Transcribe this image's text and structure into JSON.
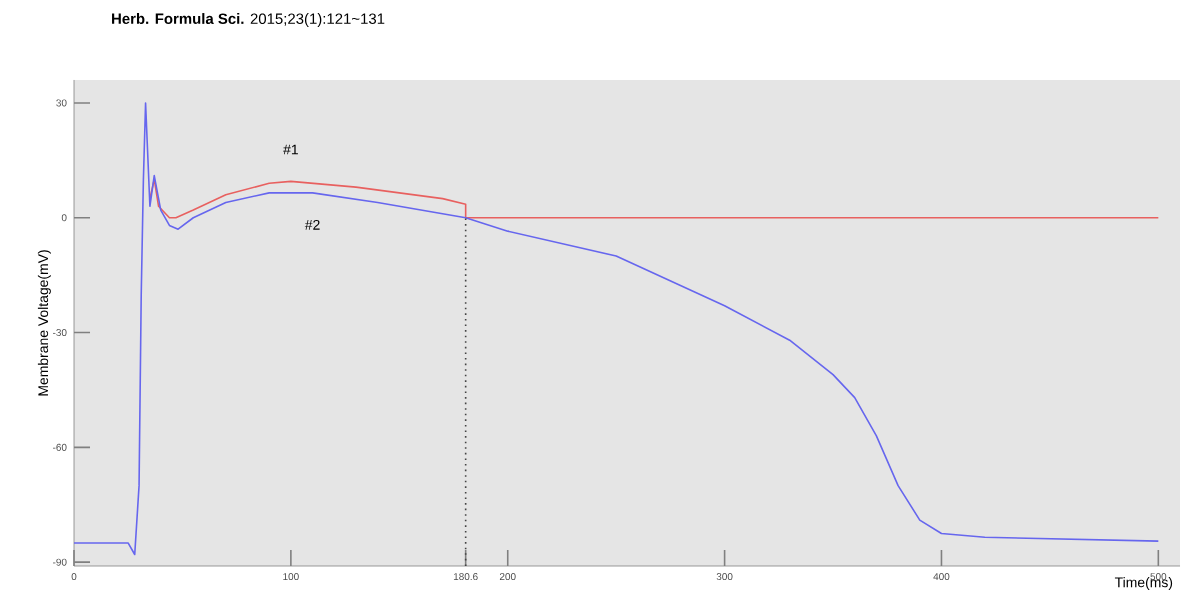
{
  "chart_data": {
    "type": "line",
    "xlabel": "Time(ms)",
    "ylabel": "Membrane Voltage(mV)",
    "annotations": [
      "**Herb. Formula Sci.** 2015;23(1):121~131"
    ],
    "xlim": [
      0,
      510
    ],
    "ylim": [
      -91,
      36
    ],
    "xticks": [
      0,
      100,
      {
        "value": 180.6,
        "label": "180.6"
      },
      200,
      300,
      400,
      500
    ],
    "yticks": [
      -90,
      -60,
      -30,
      0,
      30
    ],
    "grid": false,
    "legend": false,
    "marker": "none",
    "line_style": "solid",
    "ref_lines": [
      {
        "axis": "x",
        "value": 180.6,
        "label": null,
        "color": "#444444",
        "line_style": "dotted"
      }
    ],
    "series": [
      {
        "name": "#1",
        "color": "#e8605f",
        "x": [
          35,
          37,
          39,
          44,
          47,
          55,
          70,
          90,
          100,
          130,
          170,
          180.6,
          180.6,
          250,
          350,
          500
        ],
        "values": [
          5,
          10,
          3,
          0,
          0,
          2,
          6,
          9,
          9.5,
          8,
          5,
          3.5,
          0,
          0,
          0,
          0
        ]
      },
      {
        "name": "#2",
        "color": "#6666ee",
        "x": [
          0,
          25,
          28,
          30,
          31,
          32,
          33,
          35,
          37,
          40,
          44,
          48,
          55,
          70,
          90,
          110,
          140,
          180.6,
          200,
          250,
          300,
          330,
          350,
          360,
          370,
          380,
          390,
          400,
          420,
          500
        ],
        "values": [
          -85,
          -85,
          -88,
          -70,
          -20,
          10,
          30,
          3,
          11,
          2,
          -2,
          -3,
          0,
          4,
          6.5,
          6.5,
          4,
          0,
          -3.5,
          -10,
          -23,
          -32,
          -41,
          -47,
          -57,
          -70,
          -79,
          -82.5,
          -83.5,
          -84.5
        ]
      }
    ]
  }
}
